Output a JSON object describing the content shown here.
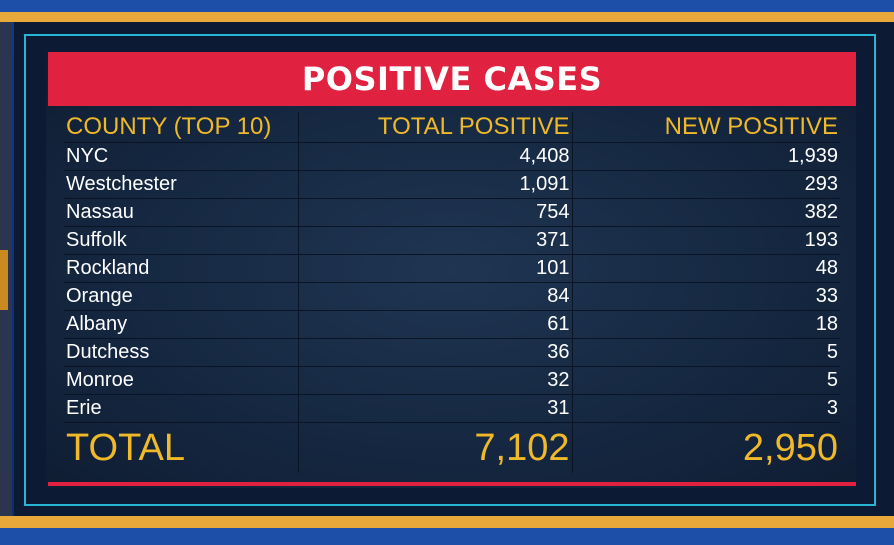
{
  "title": "POSITIVE CASES",
  "headers": [
    "COUNTY (TOP 10)",
    "TOTAL POSITIVE",
    "NEW POSITIVE"
  ],
  "rows": [
    {
      "county": "NYC",
      "total": "4,408",
      "new": "1,939"
    },
    {
      "county": "Westchester",
      "total": "1,091",
      "new": "293"
    },
    {
      "county": "Nassau",
      "total": "754",
      "new": "382"
    },
    {
      "county": "Suffolk",
      "total": "371",
      "new": "193"
    },
    {
      "county": "Rockland",
      "total": "101",
      "new": "48"
    },
    {
      "county": "Orange",
      "total": "84",
      "new": "33"
    },
    {
      "county": "Albany",
      "total": "61",
      "new": "18"
    },
    {
      "county": "Dutchess",
      "total": "36",
      "new": "5"
    },
    {
      "county": "Monroe",
      "total": "32",
      "new": "5"
    },
    {
      "county": "Erie",
      "total": "31",
      "new": "3"
    }
  ],
  "total_row": {
    "label": "TOTAL",
    "total": "7,102",
    "new": "2,950"
  },
  "colors": {
    "title_bar": "#e0213f",
    "header_text": "#f0b92a",
    "body_text": "#ffffff",
    "frame": "#29b6d6",
    "stripe": "#e8a93a"
  },
  "chart_data": {
    "type": "table",
    "title": "POSITIVE CASES",
    "columns": [
      "COUNTY (TOP 10)",
      "TOTAL POSITIVE",
      "NEW POSITIVE"
    ],
    "categories": [
      "NYC",
      "Westchester",
      "Nassau",
      "Suffolk",
      "Rockland",
      "Orange",
      "Albany",
      "Dutchess",
      "Monroe",
      "Erie"
    ],
    "series": [
      {
        "name": "TOTAL POSITIVE",
        "values": [
          4408,
          1091,
          754,
          371,
          101,
          84,
          61,
          36,
          32,
          31
        ]
      },
      {
        "name": "NEW POSITIVE",
        "values": [
          1939,
          293,
          382,
          193,
          48,
          33,
          18,
          5,
          5,
          3
        ]
      }
    ],
    "totals": {
      "TOTAL POSITIVE": 7102,
      "NEW POSITIVE": 2950
    }
  }
}
